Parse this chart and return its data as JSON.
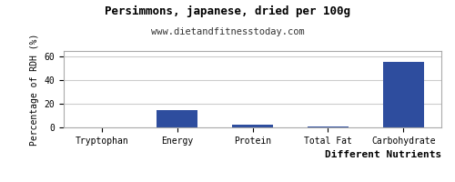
{
  "title": "Persimmons, japanese, dried per 100g",
  "subtitle": "www.dietandfitnesstoday.com",
  "xlabel": "Different Nutrients",
  "ylabel": "Percentage of RDH (%)",
  "categories": [
    "Tryptophan",
    "Energy",
    "Protein",
    "Total Fat",
    "Carbohydrate"
  ],
  "values": [
    0.0,
    14.5,
    2.5,
    1.0,
    56.0
  ],
  "bar_color": "#2e4d9e",
  "ylim": [
    0,
    65
  ],
  "yticks": [
    0,
    20,
    40,
    60
  ],
  "background_color": "#ffffff",
  "grid_color": "#cccccc",
  "title_fontsize": 9,
  "subtitle_fontsize": 7.5,
  "ylabel_fontsize": 7,
  "xlabel_fontsize": 8,
  "tick_fontsize": 7,
  "border_color": "#aaaaaa"
}
